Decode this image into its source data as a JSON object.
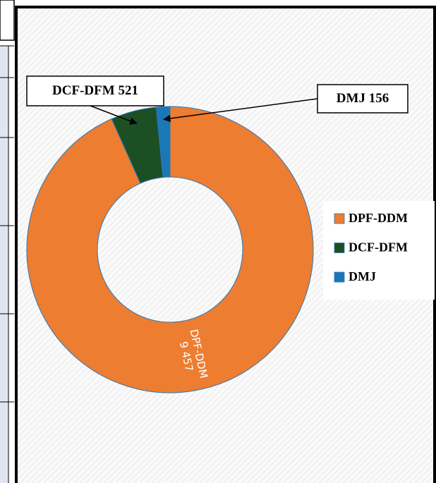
{
  "chart_data": {
    "type": "donut",
    "categories": [
      "DPF-DDM",
      "DCF-DFM",
      "DMJ"
    ],
    "values": [
      9457,
      521,
      156
    ],
    "value_labels": [
      "9 457",
      "521",
      "156"
    ],
    "colors": [
      "#ed7d31",
      "#1d4f25",
      "#1a78b6"
    ],
    "legend": "right"
  }
}
